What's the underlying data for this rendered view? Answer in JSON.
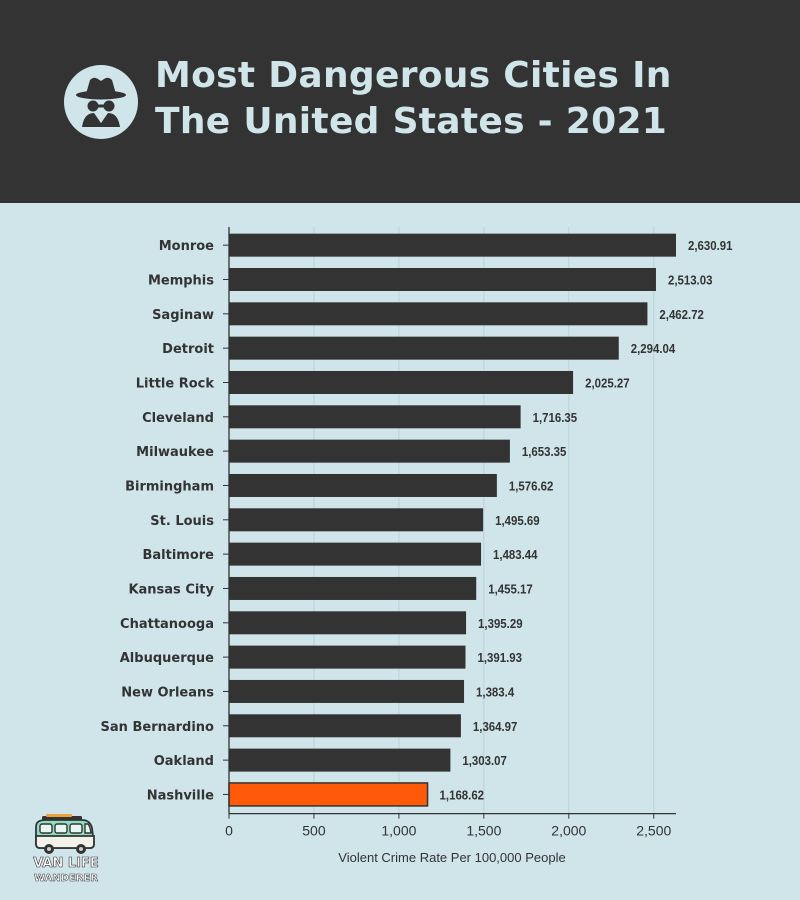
{
  "header": {
    "title_line1": "Most Dangerous Cities In",
    "title_line2": "The United States - 2021",
    "icon": "spy-incognito-icon"
  },
  "logo": {
    "line1": "VAN LIFE",
    "line2": "WANDERER"
  },
  "colors": {
    "bar": "#333333",
    "highlight": "#ff5a0a",
    "background": "#cfe5ea",
    "header": "#333333"
  },
  "chart_data": {
    "type": "bar",
    "orientation": "horizontal",
    "title": "Most Dangerous Cities In The United States - 2021",
    "xlabel": "Violent Crime Rate Per 100,000 People",
    "ylabel": "",
    "xlim": [
      0,
      2630.91
    ],
    "xticks": [
      0,
      500,
      1000,
      1500,
      2000,
      2500
    ],
    "xtick_labels": [
      "0",
      "500",
      "1,000",
      "1,500",
      "2,000",
      "2,500"
    ],
    "grid": "vertical",
    "highlight_category": "Nashville",
    "categories": [
      "Monroe",
      "Memphis",
      "Saginaw",
      "Detroit",
      "Little Rock",
      "Cleveland",
      "Milwaukee",
      "Birmingham",
      "St. Louis",
      "Baltimore",
      "Kansas City",
      "Chattanooga",
      "Albuquerque",
      "New Orleans",
      "San Bernardino",
      "Oakland",
      "Nashville"
    ],
    "values": [
      2630.91,
      2513.03,
      2462.72,
      2294.04,
      2025.27,
      1716.35,
      1653.35,
      1576.62,
      1495.69,
      1483.44,
      1455.17,
      1395.29,
      1391.93,
      1383.4,
      1364.97,
      1303.07,
      1168.62
    ],
    "value_labels": [
      "2,630.91",
      "2,513.03",
      "2,462.72",
      "2,294.04",
      "2,025.27",
      "1,716.35",
      "1,653.35",
      "1,576.62",
      "1,495.69",
      "1,483.44",
      "1,455.17",
      "1,395.29",
      "1,391.93",
      "1,383.4",
      "1,364.97",
      "1,303.07",
      "1,168.62"
    ]
  }
}
